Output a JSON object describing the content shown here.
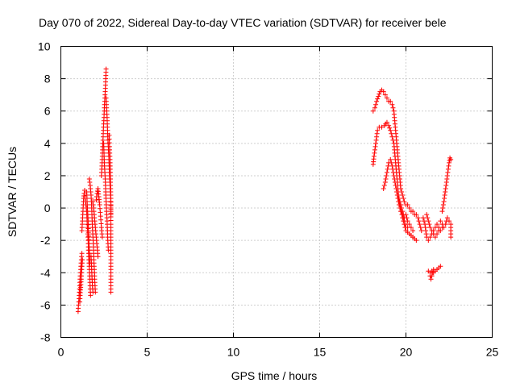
{
  "chart_data": {
    "type": "scatter",
    "title": "Day 070 of 2022, Sidereal Day-to-day VTEC variation (SDTVAR) for receiver bele",
    "xlabel": "GPS time / hours",
    "ylabel": "SDTVAR / TECUs",
    "xlim": [
      0,
      25
    ],
    "ylim": [
      -8,
      10
    ],
    "xticks": [
      0,
      5,
      10,
      15,
      20,
      25
    ],
    "yticks": [
      -8,
      -6,
      -4,
      -2,
      0,
      2,
      4,
      6,
      8,
      10
    ],
    "grid": true,
    "marker": "+",
    "color": "#ff0000",
    "series": [
      {
        "name": "SDTVAR",
        "segments": [
          [
            [
              1.0,
              -6.4
            ],
            [
              1.02,
              -6.0
            ],
            [
              1.05,
              -5.6
            ],
            [
              1.08,
              -5.0
            ],
            [
              1.1,
              -4.6
            ],
            [
              1.12,
              -4.2
            ],
            [
              1.15,
              -3.8
            ],
            [
              1.17,
              -3.4
            ],
            [
              1.2,
              -3.0
            ],
            [
              1.22,
              -2.8
            ]
          ],
          [
            [
              1.1,
              -5.8
            ],
            [
              1.12,
              -5.4
            ],
            [
              1.15,
              -4.9
            ],
            [
              1.18,
              -4.4
            ],
            [
              1.2,
              -4.0
            ],
            [
              1.22,
              -3.6
            ],
            [
              1.25,
              -3.2
            ]
          ],
          [
            [
              1.22,
              -1.4
            ],
            [
              1.25,
              -0.8
            ],
            [
              1.28,
              -0.2
            ],
            [
              1.3,
              0.2
            ],
            [
              1.32,
              0.6
            ],
            [
              1.35,
              0.9
            ],
            [
              1.38,
              1.1
            ]
          ],
          [
            [
              1.4,
              0.6
            ],
            [
              1.45,
              0.2
            ],
            [
              1.5,
              -0.2
            ],
            [
              1.52,
              -0.8
            ],
            [
              1.55,
              -1.4
            ],
            [
              1.58,
              -2.0
            ],
            [
              1.6,
              -2.6
            ],
            [
              1.62,
              -3.2
            ],
            [
              1.65,
              -3.8
            ],
            [
              1.68,
              -4.4
            ],
            [
              1.7,
              -5.0
            ],
            [
              1.72,
              -5.4
            ]
          ],
          [
            [
              1.5,
              1.0
            ],
            [
              1.52,
              0.4
            ],
            [
              1.55,
              -0.2
            ],
            [
              1.58,
              -0.8
            ],
            [
              1.6,
              -1.5
            ],
            [
              1.63,
              -2.2
            ],
            [
              1.66,
              -2.8
            ],
            [
              1.68,
              -3.4
            ]
          ],
          [
            [
              1.65,
              1.8
            ],
            [
              1.7,
              1.4
            ],
            [
              1.75,
              0.8
            ],
            [
              1.78,
              0.2
            ],
            [
              1.8,
              -0.4
            ],
            [
              1.82,
              -1.0
            ],
            [
              1.85,
              -1.6
            ],
            [
              1.88,
              -2.2
            ],
            [
              1.9,
              -2.8
            ],
            [
              1.92,
              -3.4
            ],
            [
              1.95,
              -4.0
            ],
            [
              1.97,
              -4.6
            ],
            [
              2.0,
              -5.2
            ]
          ],
          [
            [
              1.75,
              -3.0
            ],
            [
              1.78,
              -3.6
            ],
            [
              1.8,
              -4.2
            ],
            [
              1.83,
              -4.8
            ],
            [
              1.86,
              -5.2
            ]
          ],
          [
            [
              1.85,
              0.4
            ],
            [
              1.9,
              0.0
            ],
            [
              1.95,
              -0.6
            ],
            [
              2.0,
              -1.2
            ],
            [
              2.05,
              -1.8
            ],
            [
              2.1,
              -2.4
            ],
            [
              2.15,
              -3.0
            ]
          ],
          [
            [
              2.05,
              0.5
            ],
            [
              2.1,
              0.9
            ],
            [
              2.15,
              1.2
            ],
            [
              2.2,
              0.7
            ],
            [
              2.25,
              0.2
            ],
            [
              2.3,
              -0.5
            ],
            [
              2.35,
              -1.2
            ],
            [
              2.4,
              -1.8
            ]
          ],
          [
            [
              2.35,
              2.0
            ],
            [
              2.38,
              2.6
            ],
            [
              2.4,
              3.2
            ],
            [
              2.42,
              3.8
            ],
            [
              2.45,
              4.4
            ],
            [
              2.47,
              5.0
            ],
            [
              2.5,
              5.6
            ],
            [
              2.52,
              6.2
            ],
            [
              2.55,
              6.8
            ],
            [
              2.58,
              7.4
            ],
            [
              2.6,
              8.0
            ],
            [
              2.62,
              8.6
            ]
          ],
          [
            [
              2.48,
              4.0
            ],
            [
              2.5,
              3.4
            ],
            [
              2.52,
              2.8
            ],
            [
              2.55,
              2.2
            ],
            [
              2.58,
              1.6
            ],
            [
              2.6,
              1.0
            ],
            [
              2.62,
              0.4
            ],
            [
              2.65,
              -0.2
            ],
            [
              2.68,
              -0.8
            ],
            [
              2.7,
              -1.4
            ],
            [
              2.72,
              -2.0
            ],
            [
              2.75,
              -2.6
            ]
          ],
          [
            [
              2.62,
              6.8
            ],
            [
              2.65,
              6.2
            ],
            [
              2.68,
              5.6
            ],
            [
              2.7,
              5.0
            ],
            [
              2.72,
              4.4
            ],
            [
              2.75,
              3.8
            ],
            [
              2.78,
              3.2
            ],
            [
              2.8,
              2.6
            ],
            [
              2.82,
              2.0
            ],
            [
              2.85,
              1.4
            ],
            [
              2.88,
              0.8
            ],
            [
              2.9,
              0.2
            ],
            [
              2.9,
              -0.4
            ]
          ],
          [
            [
              2.8,
              4.5
            ],
            [
              2.82,
              3.8
            ],
            [
              2.85,
              3.0
            ],
            [
              2.87,
              2.2
            ],
            [
              2.88,
              1.4
            ],
            [
              2.9,
              0.6
            ],
            [
              2.9,
              -1.0
            ],
            [
              2.9,
              -2.0
            ],
            [
              2.9,
              -3.0
            ],
            [
              2.9,
              -3.6
            ],
            [
              2.9,
              -4.2
            ],
            [
              2.9,
              -4.8
            ],
            [
              2.9,
              -5.2
            ]
          ],
          [
            [
              18.1,
              2.7
            ],
            [
              18.15,
              3.2
            ],
            [
              18.2,
              3.6
            ],
            [
              18.25,
              4.0
            ],
            [
              18.3,
              4.4
            ],
            [
              18.35,
              4.8
            ],
            [
              18.45,
              5.0
            ],
            [
              18.6,
              5.0
            ],
            [
              18.75,
              5.1
            ],
            [
              18.9,
              5.3
            ],
            [
              19.0,
              5.1
            ],
            [
              19.1,
              4.8
            ],
            [
              19.2,
              4.4
            ],
            [
              19.3,
              4.0
            ],
            [
              19.35,
              3.4
            ],
            [
              19.4,
              2.8
            ],
            [
              19.45,
              2.2
            ],
            [
              19.5,
              1.6
            ],
            [
              19.55,
              1.0
            ],
            [
              19.6,
              0.4
            ],
            [
              19.7,
              0.0
            ],
            [
              19.8,
              -0.6
            ],
            [
              19.9,
              -1.0
            ],
            [
              20.0,
              -1.4
            ],
            [
              20.2,
              -1.6
            ],
            [
              20.4,
              -1.8
            ],
            [
              20.6,
              -2.0
            ]
          ],
          [
            [
              18.1,
              6.0
            ],
            [
              18.2,
              6.2
            ],
            [
              18.3,
              6.6
            ],
            [
              18.4,
              6.9
            ],
            [
              18.5,
              7.2
            ],
            [
              18.6,
              7.3
            ],
            [
              18.7,
              7.2
            ],
            [
              18.8,
              7.0
            ],
            [
              18.9,
              6.8
            ],
            [
              19.0,
              6.6
            ],
            [
              19.1,
              6.6
            ],
            [
              19.2,
              6.4
            ],
            [
              19.3,
              6.0
            ],
            [
              19.35,
              5.4
            ],
            [
              19.4,
              4.8
            ],
            [
              19.45,
              4.2
            ],
            [
              19.5,
              3.6
            ],
            [
              19.55,
              3.0
            ],
            [
              19.6,
              2.4
            ],
            [
              19.65,
              1.8
            ],
            [
              19.7,
              1.2
            ],
            [
              19.8,
              0.8
            ],
            [
              19.9,
              0.4
            ],
            [
              20.0,
              0.2
            ],
            [
              20.1,
              0.2
            ],
            [
              20.2,
              0.0
            ],
            [
              20.3,
              -0.2
            ],
            [
              20.4,
              -0.2
            ],
            [
              20.5,
              -0.4
            ],
            [
              20.6,
              -0.4
            ],
            [
              20.7,
              -0.6
            ],
            [
              20.8,
              -1.0
            ],
            [
              20.9,
              -1.4
            ]
          ],
          [
            [
              18.7,
              1.2
            ],
            [
              18.8,
              1.6
            ],
            [
              18.9,
              2.2
            ],
            [
              19.0,
              2.8
            ],
            [
              19.1,
              3.0
            ],
            [
              19.2,
              2.6
            ],
            [
              19.3,
              2.0
            ],
            [
              19.4,
              1.4
            ],
            [
              19.5,
              0.8
            ],
            [
              19.6,
              0.2
            ],
            [
              19.7,
              -0.2
            ],
            [
              19.8,
              -0.4
            ],
            [
              19.9,
              -0.8
            ],
            [
              20.0,
              -1.0
            ],
            [
              20.1,
              -1.2
            ]
          ],
          [
            [
              19.6,
              0.6
            ],
            [
              19.7,
              0.2
            ],
            [
              19.8,
              -0.2
            ],
            [
              19.9,
              -0.6
            ],
            [
              20.0,
              -0.4
            ],
            [
              20.1,
              -0.8
            ],
            [
              20.2,
              -1.0
            ],
            [
              20.3,
              -1.2
            ],
            [
              20.4,
              -1.4
            ]
          ],
          [
            [
              21.0,
              -0.6
            ],
            [
              21.1,
              -1.0
            ],
            [
              21.15,
              -1.4
            ],
            [
              21.2,
              -1.8
            ],
            [
              21.3,
              -2.0
            ],
            [
              21.4,
              -1.8
            ],
            [
              21.5,
              -1.6
            ],
            [
              21.6,
              -1.4
            ],
            [
              21.7,
              -1.2
            ],
            [
              21.8,
              -1.0
            ],
            [
              21.9,
              -1.2
            ]
          ],
          [
            [
              21.2,
              -0.4
            ],
            [
              21.3,
              -0.8
            ],
            [
              21.4,
              -1.2
            ],
            [
              21.5,
              -1.4
            ],
            [
              21.6,
              -1.6
            ],
            [
              21.7,
              -1.8
            ],
            [
              21.8,
              -1.6
            ],
            [
              21.9,
              -1.4
            ],
            [
              22.0,
              -1.4
            ],
            [
              22.1,
              -1.2
            ]
          ],
          [
            [
              21.4,
              -4.2
            ],
            [
              21.45,
              -4.4
            ],
            [
              21.5,
              -4.2
            ],
            [
              21.55,
              -4.0
            ],
            [
              21.6,
              -4.0
            ],
            [
              21.7,
              -3.9
            ],
            [
              21.8,
              -3.8
            ],
            [
              21.9,
              -3.7
            ],
            [
              22.0,
              -3.6
            ]
          ],
          [
            [
              21.3,
              -3.9
            ],
            [
              21.4,
              -4.0
            ],
            [
              21.5,
              -3.9
            ],
            [
              21.6,
              -3.8
            ]
          ],
          [
            [
              22.0,
              -0.8
            ],
            [
              22.1,
              -1.0
            ],
            [
              22.2,
              -1.2
            ],
            [
              22.3,
              -1.0
            ],
            [
              22.4,
              -0.6
            ],
            [
              22.5,
              -0.8
            ],
            [
              22.6,
              -1.0
            ],
            [
              22.6,
              -1.4
            ],
            [
              22.6,
              -1.8
            ]
          ],
          [
            [
              22.1,
              -0.2
            ],
            [
              22.2,
              0.4
            ],
            [
              22.25,
              0.8
            ],
            [
              22.3,
              1.2
            ],
            [
              22.35,
              1.6
            ],
            [
              22.4,
              2.0
            ],
            [
              22.45,
              2.4
            ],
            [
              22.5,
              2.8
            ],
            [
              22.55,
              3.1
            ],
            [
              22.6,
              3.0
            ]
          ]
        ]
      }
    ]
  }
}
